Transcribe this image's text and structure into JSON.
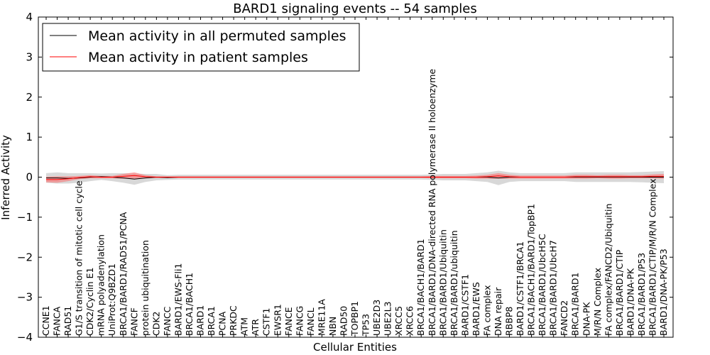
{
  "chart_data": {
    "type": "line",
    "title": "BARD1 signaling events -- 54 samples",
    "xlabel": "Cellular Entities",
    "ylabel": "Inferred Activity",
    "ylim": [
      -4,
      4
    ],
    "yticks": [
      -4,
      -3,
      -2,
      -1,
      0,
      1,
      2,
      3,
      4
    ],
    "ytick_labels": [
      "−4",
      "−3",
      "−2",
      "−1",
      "0",
      "1",
      "2",
      "3",
      "4"
    ],
    "grid": false,
    "legend_position": "top-left",
    "colors": {
      "permuted": "#000000",
      "patient": "#ff0000",
      "patient_band": "#ff6a6a",
      "permuted_band": "#c8c8c8"
    },
    "categories": [
      "CCNE1",
      "FANCA",
      "RAD51",
      "G1/S transition of mitotic cell cycle",
      "CDK2/Cyclin E1",
      "mRNA polyadenylation",
      "UniProt:Q9BZD1",
      "BRCA1/BARD1/RAD51/PCNA",
      "FANCF",
      "protein ubiquitination",
      "CDK2",
      "FANCC",
      "BARD1/EWS-Fli1",
      "BRCA1/BACH1",
      "BARD1",
      "BRCA1",
      "PCNA",
      "PRKDC",
      "ATM",
      "ATR",
      "CSTF1",
      "EWSR1",
      "FANCE",
      "FANCG",
      "FANCL",
      "MRE11A",
      "NBN",
      "RAD50",
      "TOPBP1",
      "TP53",
      "UBE2D3",
      "UBE2L3",
      "XRCC5",
      "XRCC6",
      "BRCA1/BACH1/BARD1",
      "BRCA1/BARD1/DNA-directed RNA polymerase II holoenzyme",
      "BRCA1/BARD1/Ubiquitin",
      "BRCA1/BARD1/ubiquitin",
      "BARD1/CSTF1",
      "BARD1/EWS",
      "FA complex",
      "DNA repair",
      "RBBP8",
      "BARD1/CSTF1/BRCA1",
      "BRCA1/BACH1/BARD1/TopBP1",
      "BRCA1/BARD1/UbcH5C",
      "BRCA1/BARD1/UbcH7",
      "FANCD2",
      "BRCA1/BARD1",
      "DNA-PK",
      "M/R/N Complex",
      "FA complex/FANCD2/Ubiquitin",
      "BRCA1/BARD1/CTIP",
      "BARD1/DNA-PK",
      "BRCA1/BARD1/P53",
      "BRCA1/BARD1/CTIP/M/R/N Complex",
      "BARD1/DNA-PK/P53"
    ],
    "series": [
      {
        "name": "Mean activity in all permuted samples",
        "values": [
          -0.02,
          -0.02,
          -0.03,
          -0.02,
          0.0,
          0.01,
          0.0,
          -0.02,
          -0.05,
          -0.02,
          0.0,
          -0.01,
          0.0,
          0.0,
          0.0,
          0.0,
          0.0,
          0.0,
          0.0,
          0.0,
          0.0,
          0.0,
          0.0,
          0.0,
          0.0,
          0.0,
          0.0,
          0.0,
          0.0,
          0.0,
          0.0,
          0.0,
          0.0,
          0.0,
          0.0,
          0.0,
          0.0,
          0.0,
          0.0,
          0.0,
          0.0,
          -0.02,
          0.0,
          0.0,
          0.0,
          0.0,
          0.0,
          0.0,
          0.0,
          0.0,
          0.0,
          0.0,
          0.0,
          0.0,
          0.0,
          0.0,
          0.0
        ],
        "band": [
          0.12,
          0.14,
          0.13,
          0.12,
          0.1,
          0.08,
          0.1,
          0.12,
          0.14,
          0.1,
          0.08,
          0.06,
          0.06,
          0.06,
          0.06,
          0.06,
          0.06,
          0.06,
          0.06,
          0.06,
          0.06,
          0.06,
          0.06,
          0.06,
          0.06,
          0.06,
          0.06,
          0.06,
          0.06,
          0.06,
          0.06,
          0.06,
          0.06,
          0.06,
          0.06,
          0.07,
          0.08,
          0.08,
          0.08,
          0.1,
          0.12,
          0.18,
          0.12,
          0.1,
          0.1,
          0.1,
          0.1,
          0.1,
          0.12,
          0.12,
          0.12,
          0.12,
          0.12,
          0.12,
          0.13,
          0.14,
          0.15
        ]
      },
      {
        "name": "Mean activity in patient samples",
        "values": [
          -0.06,
          -0.06,
          -0.04,
          -0.01,
          0.01,
          0.0,
          0.0,
          0.02,
          0.04,
          0.01,
          0.0,
          0.0,
          0.0,
          0.0,
          0.0,
          0.0,
          0.0,
          0.0,
          0.0,
          0.0,
          0.0,
          0.0,
          0.0,
          0.0,
          0.0,
          0.0,
          0.0,
          0.0,
          0.0,
          0.0,
          0.0,
          0.0,
          0.0,
          0.0,
          0.0,
          0.0,
          0.0,
          0.0,
          0.0,
          0.0,
          0.01,
          0.03,
          0.01,
          0.0,
          0.0,
          0.0,
          0.0,
          0.0,
          0.01,
          0.01,
          0.01,
          0.01,
          0.01,
          0.01,
          0.01,
          0.02,
          0.02
        ],
        "band": [
          0.07,
          0.08,
          0.06,
          0.04,
          0.04,
          0.03,
          0.03,
          0.06,
          0.08,
          0.04,
          0.02,
          0.02,
          0.02,
          0.02,
          0.02,
          0.02,
          0.02,
          0.02,
          0.02,
          0.02,
          0.02,
          0.02,
          0.02,
          0.02,
          0.02,
          0.02,
          0.02,
          0.02,
          0.02,
          0.02,
          0.02,
          0.02,
          0.02,
          0.02,
          0.02,
          0.03,
          0.03,
          0.03,
          0.03,
          0.04,
          0.05,
          0.07,
          0.05,
          0.04,
          0.04,
          0.04,
          0.04,
          0.04,
          0.05,
          0.05,
          0.04,
          0.05,
          0.05,
          0.04,
          0.04,
          0.05,
          0.06
        ]
      }
    ]
  }
}
